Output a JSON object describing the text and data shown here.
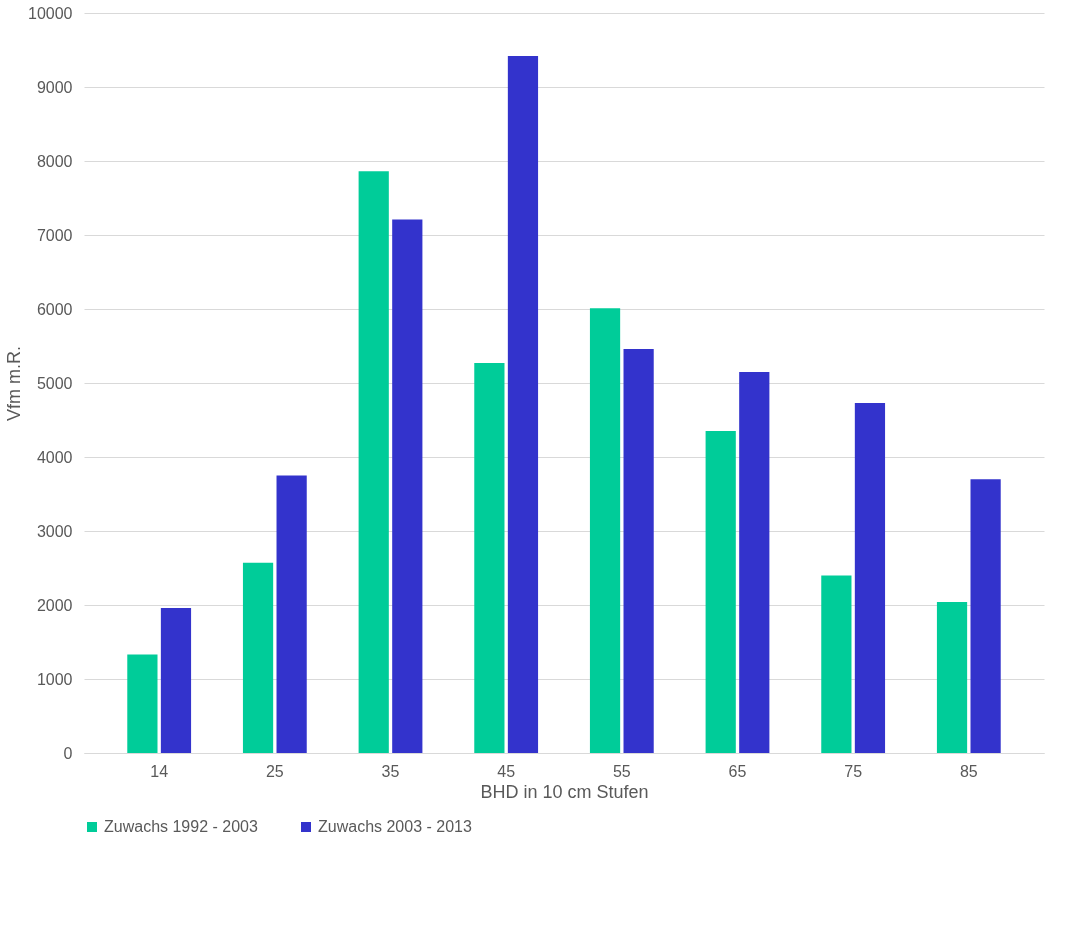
{
  "chart_data": {
    "type": "bar",
    "xlabel": "BHD in 10 cm Stufen",
    "ylabel": "Vfm m.R.",
    "categories": [
      "14",
      "25",
      "35",
      "45",
      "55",
      "65",
      "75",
      "85"
    ],
    "series": [
      {
        "name": "Zuwachs 1992 - 2003",
        "color": "#00cc99",
        "values": [
          1330,
          2570,
          7860,
          5270,
          6010,
          4350,
          2400,
          2040
        ]
      },
      {
        "name": "Zuwachs 2003 - 2013",
        "color": "#3333cc",
        "values": [
          1960,
          3750,
          7210,
          9420,
          5460,
          5150,
          4730,
          3700
        ]
      }
    ],
    "ylim": [
      0,
      10000
    ],
    "yticks": [
      0,
      1000,
      2000,
      3000,
      4000,
      5000,
      6000,
      7000,
      8000,
      9000,
      10000
    ],
    "grid": "y",
    "legend": "bottom"
  }
}
